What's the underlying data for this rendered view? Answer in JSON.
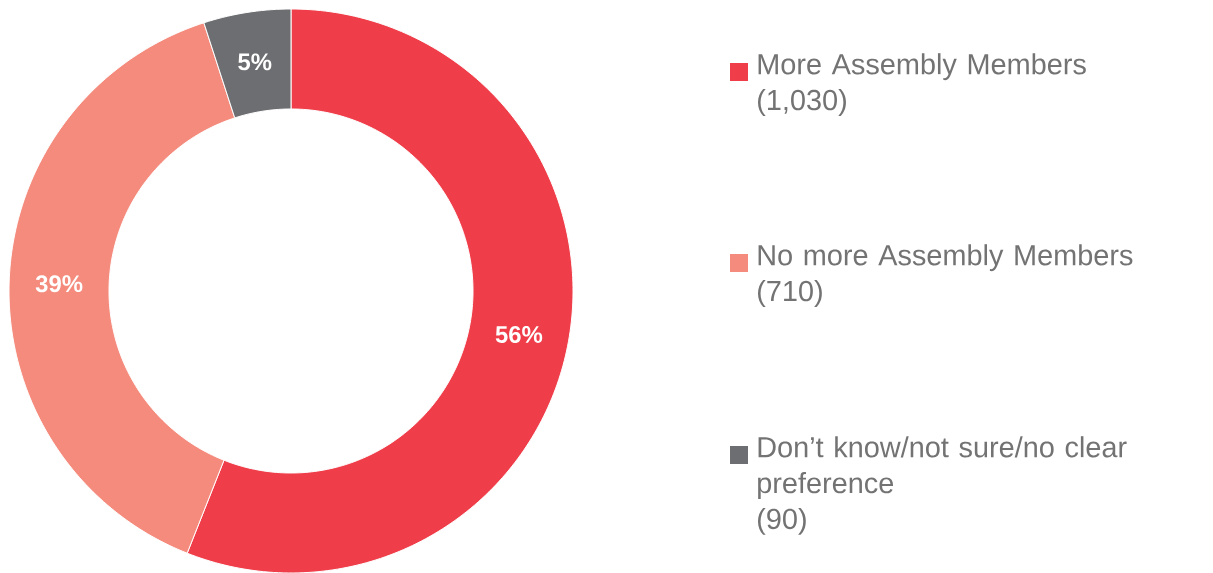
{
  "chart_data": {
    "type": "donut",
    "categories": [
      "More Assembly Members",
      "No more Assembly Members",
      "Don’t know/not sure/no clear preference"
    ],
    "values": [
      56,
      39,
      5
    ],
    "colors": [
      "#ef3e4a",
      "#f48b7d",
      "#6d6e71"
    ],
    "value_labels": [
      "56%",
      "39%",
      "5%"
    ],
    "legend": "right",
    "annotations": [
      "(1,030)",
      "(710)",
      "(90)"
    ]
  }
}
